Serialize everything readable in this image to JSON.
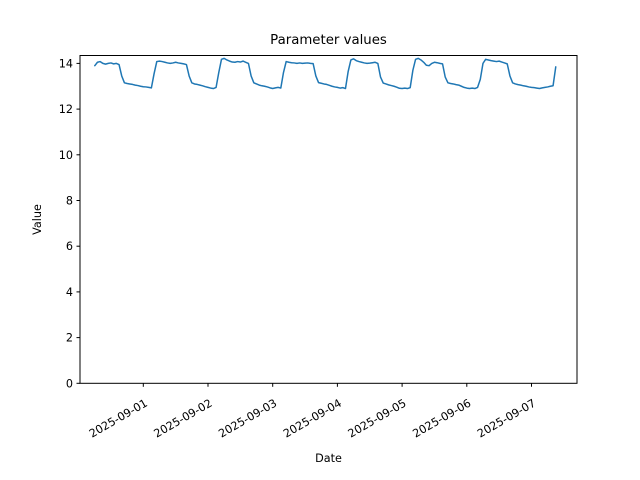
{
  "figure": {
    "background": "#ffffff",
    "text_color": "#000000"
  },
  "chart_data": {
    "type": "line",
    "title": "Parameter values",
    "xlabel": "Date",
    "ylabel": "Value",
    "ylim": [
      0,
      14.35
    ],
    "yticks": [
      0,
      2,
      4,
      6,
      8,
      10,
      12,
      14
    ],
    "xtick_labels": [
      "2025-09-01",
      "2025-09-02",
      "2025-09-03",
      "2025-09-04",
      "2025-09-05",
      "2025-09-06",
      "2025-09-07"
    ],
    "xtick_rotation_deg": 30,
    "grid": false,
    "legend": null,
    "line_color": "#1f77b4",
    "line_width": 1.5,
    "series": [
      {
        "name": "Parameter values",
        "start": "2025-08-31 06:00",
        "interval_hours": 1,
        "values": [
          13.9,
          14.05,
          14.08,
          14.0,
          13.97,
          14.0,
          14.02,
          13.98,
          14.0,
          13.95,
          13.45,
          13.15,
          13.12,
          13.1,
          13.08,
          13.05,
          13.03,
          13.0,
          12.98,
          12.97,
          12.95,
          12.93,
          13.55,
          14.08,
          14.1,
          14.08,
          14.05,
          14.02,
          14.0,
          14.02,
          14.05,
          14.02,
          14.0,
          13.98,
          13.95,
          13.45,
          13.15,
          13.1,
          13.08,
          13.05,
          13.02,
          12.98,
          12.95,
          12.92,
          12.9,
          12.95,
          13.6,
          14.18,
          14.22,
          14.15,
          14.1,
          14.06,
          14.05,
          14.08,
          14.06,
          14.1,
          14.05,
          14.0,
          13.45,
          13.15,
          13.1,
          13.05,
          13.02,
          13.0,
          12.97,
          12.93,
          12.9,
          12.93,
          12.95,
          12.92,
          13.6,
          14.08,
          14.05,
          14.03,
          14.02,
          14.0,
          14.02,
          14.0,
          14.01,
          14.02,
          14.0,
          13.99,
          13.45,
          13.16,
          13.13,
          13.1,
          13.08,
          13.04,
          13.0,
          12.97,
          12.95,
          12.92,
          12.94,
          12.9,
          13.65,
          14.15,
          14.2,
          14.12,
          14.08,
          14.05,
          14.02,
          14.0,
          14.01,
          14.03,
          14.05,
          14.0,
          13.4,
          13.14,
          13.1,
          13.06,
          13.03,
          13.0,
          12.96,
          12.91,
          12.9,
          12.92,
          12.9,
          12.94,
          13.7,
          14.18,
          14.22,
          14.15,
          14.05,
          13.92,
          13.9,
          14.0,
          14.05,
          14.03,
          14.0,
          13.98,
          13.4,
          13.15,
          13.12,
          13.1,
          13.07,
          13.05,
          13.0,
          12.95,
          12.92,
          12.9,
          12.92,
          12.9,
          12.95,
          13.3,
          14.0,
          14.18,
          14.15,
          14.12,
          14.1,
          14.08,
          14.1,
          14.06,
          14.02,
          13.98,
          13.45,
          13.15,
          13.1,
          13.07,
          13.05,
          13.02,
          13.0,
          12.97,
          12.95,
          12.94,
          12.92,
          12.9,
          12.93,
          12.95,
          12.97,
          13.0,
          13.02,
          13.85
        ]
      }
    ]
  }
}
